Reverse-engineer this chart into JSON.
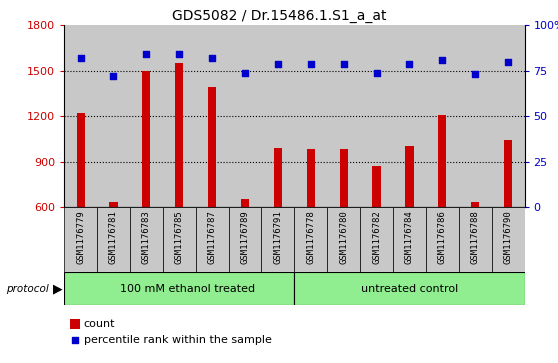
{
  "title": "GDS5082 / Dr.15486.1.S1_a_at",
  "samples": [
    "GSM1176779",
    "GSM1176781",
    "GSM1176783",
    "GSM1176785",
    "GSM1176787",
    "GSM1176789",
    "GSM1176791",
    "GSM1176778",
    "GSM1176780",
    "GSM1176782",
    "GSM1176784",
    "GSM1176786",
    "GSM1176788",
    "GSM1176790"
  ],
  "counts": [
    1220,
    630,
    1500,
    1550,
    1390,
    650,
    990,
    980,
    980,
    870,
    1000,
    1210,
    635,
    1040
  ],
  "percentiles": [
    82,
    72,
    84,
    84,
    82,
    74,
    79,
    79,
    79,
    74,
    79,
    81,
    73,
    80
  ],
  "group1_label": "100 mM ethanol treated",
  "group2_label": "untreated control",
  "group1_count": 7,
  "group2_count": 7,
  "protocol_label": "protocol",
  "ylim_left": [
    600,
    1800
  ],
  "ylim_right": [
    0,
    100
  ],
  "yticks_left": [
    600,
    900,
    1200,
    1500,
    1800
  ],
  "yticks_right": [
    0,
    25,
    50,
    75,
    100
  ],
  "bar_color": "#cc0000",
  "dot_color": "#0000cc",
  "group1_color": "#90ee90",
  "group2_color": "#90ee90",
  "grid_color": "#000000",
  "bg_color": "#c8c8c8",
  "plot_bg": "#ffffff",
  "legend_count_label": "count",
  "legend_pct_label": "percentile rank within the sample"
}
